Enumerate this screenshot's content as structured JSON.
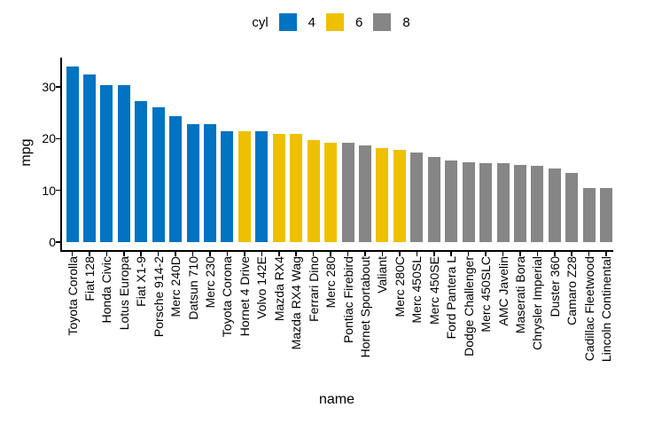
{
  "chart_data": {
    "type": "bar",
    "title": "",
    "xlabel": "name",
    "ylabel": "mpg",
    "ylim": [
      0,
      35.6
    ],
    "yticks": [
      0,
      10,
      20,
      30
    ],
    "grid": false,
    "legend": {
      "title": "cyl",
      "position": "top",
      "entries": [
        {
          "label": "4",
          "color": "#0073C2"
        },
        {
          "label": "6",
          "color": "#EFC000"
        },
        {
          "label": "8",
          "color": "#868686"
        }
      ]
    },
    "bars": [
      {
        "name": "Toyota Corolla",
        "mpg": 33.9,
        "cyl": 4
      },
      {
        "name": "Fiat 128",
        "mpg": 32.4,
        "cyl": 4
      },
      {
        "name": "Honda Civic",
        "mpg": 30.4,
        "cyl": 4
      },
      {
        "name": "Lotus Europa",
        "mpg": 30.4,
        "cyl": 4
      },
      {
        "name": "Fiat X1-9",
        "mpg": 27.3,
        "cyl": 4
      },
      {
        "name": "Porsche 914-2",
        "mpg": 26.0,
        "cyl": 4
      },
      {
        "name": "Merc 240D",
        "mpg": 24.4,
        "cyl": 4
      },
      {
        "name": "Datsun 710",
        "mpg": 22.8,
        "cyl": 4
      },
      {
        "name": "Merc 230",
        "mpg": 22.8,
        "cyl": 4
      },
      {
        "name": "Toyota Corona",
        "mpg": 21.5,
        "cyl": 4
      },
      {
        "name": "Hornet 4 Drive",
        "mpg": 21.4,
        "cyl": 6
      },
      {
        "name": "Volvo 142E",
        "mpg": 21.4,
        "cyl": 4
      },
      {
        "name": "Mazda RX4",
        "mpg": 21.0,
        "cyl": 6
      },
      {
        "name": "Mazda RX4 Wag",
        "mpg": 21.0,
        "cyl": 6
      },
      {
        "name": "Ferrari Dino",
        "mpg": 19.7,
        "cyl": 6
      },
      {
        "name": "Merc 280",
        "mpg": 19.2,
        "cyl": 6
      },
      {
        "name": "Pontiac Firebird",
        "mpg": 19.2,
        "cyl": 8
      },
      {
        "name": "Hornet Sportabout",
        "mpg": 18.7,
        "cyl": 8
      },
      {
        "name": "Valiant",
        "mpg": 18.1,
        "cyl": 6
      },
      {
        "name": "Merc 280C",
        "mpg": 17.8,
        "cyl": 6
      },
      {
        "name": "Merc 450SL",
        "mpg": 17.3,
        "cyl": 8
      },
      {
        "name": "Merc 450SE",
        "mpg": 16.4,
        "cyl": 8
      },
      {
        "name": "Ford Pantera L",
        "mpg": 15.8,
        "cyl": 8
      },
      {
        "name": "Dodge Challenger",
        "mpg": 15.5,
        "cyl": 8
      },
      {
        "name": "Merc 450SLC",
        "mpg": 15.2,
        "cyl": 8
      },
      {
        "name": "AMC Javelin",
        "mpg": 15.2,
        "cyl": 8
      },
      {
        "name": "Maserati Bora",
        "mpg": 15.0,
        "cyl": 8
      },
      {
        "name": "Chrysler Imperial",
        "mpg": 14.7,
        "cyl": 8
      },
      {
        "name": "Duster 360",
        "mpg": 14.3,
        "cyl": 8
      },
      {
        "name": "Camaro Z28",
        "mpg": 13.3,
        "cyl": 8
      },
      {
        "name": "Cadillac Fleetwood",
        "mpg": 10.4,
        "cyl": 8
      },
      {
        "name": "Lincoln Continental",
        "mpg": 10.4,
        "cyl": 8
      }
    ]
  },
  "colors": {
    "cyl4": "#0073C2",
    "cyl6": "#EFC000",
    "cyl8": "#868686",
    "axis": "#000000",
    "background": "#FFFFFF"
  }
}
